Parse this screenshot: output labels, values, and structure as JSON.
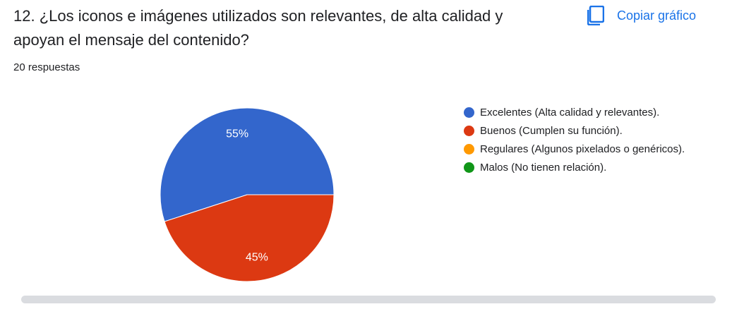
{
  "question": "12. ¿Los iconos e imágenes utilizados son relevantes, de alta calidad y apoyan el mensaje del contenido?",
  "response_count": "20 respuestas",
  "copy_button": {
    "label": "Copiar gráfico",
    "icon": "copy-icon"
  },
  "colors": {
    "accent": "#1a73e8"
  },
  "chart_data": {
    "type": "pie",
    "categories": [
      "Excelentes (Alta calidad y relevantes).",
      "Buenos (Cumplen su función).",
      "Regulares (Algunos pixelados o genéricos).",
      "Malos (No tienen relación)."
    ],
    "values": [
      55,
      45,
      0,
      0
    ],
    "labels": [
      "55%",
      "45%",
      "",
      ""
    ],
    "colors": [
      "#3366cc",
      "#dc3912",
      "#ff9900",
      "#109618"
    ],
    "legend_position": "right"
  }
}
